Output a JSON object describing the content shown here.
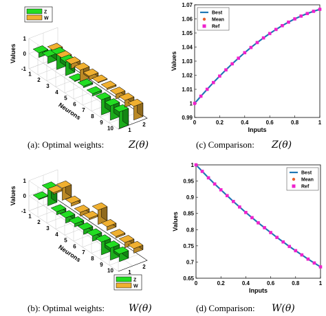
{
  "captions": {
    "a": {
      "prefix": "(a): Optimal weights:",
      "math": "Z(θ)"
    },
    "b": {
      "prefix": "(b): Optimal weights:",
      "math": "W(θ)"
    },
    "c": {
      "prefix": "(c) Comparison:",
      "math": "Z(θ)"
    },
    "d": {
      "prefix": "(d) Comparison:",
      "math": "W(θ)"
    }
  },
  "colors": {
    "z": "#22dd22",
    "w": "#f0b030",
    "best": "#1f77b4",
    "mean": "#e8602c",
    "ref": "#ee22cc"
  },
  "chart_data": [
    {
      "type": "bar3d",
      "id": "a",
      "zlabel": "Values",
      "ylabel": "Neurons",
      "x_ticks": [
        "1",
        "2"
      ],
      "y_ticks": [
        "1",
        "2",
        "3",
        "4",
        "5",
        "6",
        "7",
        "8",
        "9",
        "10"
      ],
      "z_ticks": [
        "1",
        "0",
        "-1"
      ],
      "zlim": [
        -1,
        1
      ],
      "legend": [
        "Z",
        "W"
      ],
      "legend_position": "top-left",
      "series": [
        {
          "name": "Z",
          "values": [
            0.3,
            0.45,
            1.0,
            0.9,
            0.05,
            0.1,
            -0.15,
            -1.0,
            -0.95,
            -1.1
          ]
        },
        {
          "name": "W",
          "values": [
            0.1,
            -0.1,
            -0.3,
            -0.75,
            -0.25,
            -0.05,
            -0.1,
            -0.3,
            -0.45,
            -0.9
          ]
        }
      ]
    },
    {
      "type": "bar3d",
      "id": "b",
      "zlabel": "Values",
      "ylabel": "Neurons",
      "x_ticks": [
        "1",
        "2"
      ],
      "y_ticks": [
        "1",
        "2",
        "3",
        "4",
        "5",
        "6",
        "7",
        "8",
        "9",
        "10"
      ],
      "z_ticks": [
        "1",
        "0",
        "-1"
      ],
      "zlim": [
        -1,
        1
      ],
      "legend": [
        "Z",
        "W"
      ],
      "legend_position": "bottom-right",
      "series": [
        {
          "name": "Z",
          "values": [
            0.05,
            1.1,
            -0.2,
            -0.35,
            -0.2,
            -0.3,
            -0.35,
            -0.85,
            -0.8,
            -0.5
          ]
        },
        {
          "name": "W",
          "values": [
            0.1,
            0.8,
            0.2,
            -0.25,
            -0.1,
            0.95,
            0.25,
            -0.1,
            -0.35,
            -0.3
          ]
        }
      ]
    },
    {
      "type": "line",
      "id": "c",
      "xlabel": "Inputs",
      "ylabel": "Values",
      "xlim": [
        0,
        1
      ],
      "ylim": [
        0.99,
        1.07
      ],
      "x_ticks": [
        "0",
        "0.2",
        "0.4",
        "0.6",
        "0.8",
        "1"
      ],
      "y_ticks": [
        "0.99",
        "1",
        "1.01",
        "1.02",
        "1.03",
        "1.04",
        "1.05",
        "1.06",
        "1.07"
      ],
      "legend": [
        "Best",
        "Mean",
        "Ref"
      ],
      "legend_position": "top-left",
      "x": [
        0,
        0.05,
        0.1,
        0.15,
        0.2,
        0.25,
        0.3,
        0.35,
        0.4,
        0.45,
        0.5,
        0.55,
        0.6,
        0.65,
        0.7,
        0.75,
        0.8,
        0.85,
        0.9,
        0.95,
        1.0
      ],
      "series": [
        {
          "name": "Best",
          "values": [
            1.0,
            1.0051,
            1.01,
            1.0148,
            1.0194,
            1.0238,
            1.0281,
            1.0321,
            1.036,
            1.0397,
            1.0432,
            1.0465,
            1.0496,
            1.0525,
            1.0552,
            1.0577,
            1.06,
            1.062,
            1.0638,
            1.0654,
            1.0668
          ]
        },
        {
          "name": "Mean",
          "values": [
            1.0,
            1.0051,
            1.01,
            1.0148,
            1.0194,
            1.0238,
            1.0281,
            1.0321,
            1.036,
            1.0397,
            1.0432,
            1.0465,
            1.0496,
            1.0525,
            1.0552,
            1.0577,
            1.06,
            1.062,
            1.0638,
            1.0654,
            1.0668
          ]
        },
        {
          "name": "Ref",
          "values": [
            1.0,
            1.0051,
            1.01,
            1.0148,
            1.0194,
            1.0238,
            1.0281,
            1.0321,
            1.036,
            1.0397,
            1.0432,
            1.0465,
            1.0496,
            1.0525,
            1.0552,
            1.0577,
            1.06,
            1.062,
            1.0638,
            1.0654,
            1.0668
          ]
        }
      ]
    },
    {
      "type": "line",
      "id": "d",
      "xlabel": "Inputs",
      "ylabel": "Values",
      "xlim": [
        0,
        1
      ],
      "ylim": [
        0.65,
        1.0
      ],
      "x_ticks": [
        "0",
        "0.2",
        "0.4",
        "0.6",
        "0.8",
        "1"
      ],
      "y_ticks": [
        "0.65",
        "0.7",
        "0.75",
        "0.8",
        "0.85",
        "0.9",
        "0.95",
        "1"
      ],
      "legend": [
        "Best",
        "Mean",
        "Ref"
      ],
      "legend_position": "top-right",
      "x": [
        0,
        0.05,
        0.1,
        0.15,
        0.2,
        0.25,
        0.3,
        0.35,
        0.4,
        0.45,
        0.5,
        0.55,
        0.6,
        0.65,
        0.7,
        0.75,
        0.8,
        0.85,
        0.9,
        0.95,
        1.0
      ],
      "series": [
        {
          "name": "Best",
          "values": [
            1.0,
            0.98,
            0.96,
            0.941,
            0.923,
            0.905,
            0.887,
            0.87,
            0.853,
            0.837,
            0.821,
            0.806,
            0.791,
            0.776,
            0.762,
            0.748,
            0.735,
            0.722,
            0.709,
            0.697,
            0.685
          ]
        },
        {
          "name": "Mean",
          "values": [
            1.0,
            0.98,
            0.96,
            0.941,
            0.923,
            0.905,
            0.887,
            0.87,
            0.853,
            0.837,
            0.821,
            0.806,
            0.791,
            0.776,
            0.762,
            0.748,
            0.735,
            0.722,
            0.709,
            0.697,
            0.685
          ]
        },
        {
          "name": "Ref",
          "values": [
            1.0,
            0.98,
            0.96,
            0.941,
            0.923,
            0.905,
            0.887,
            0.87,
            0.853,
            0.837,
            0.821,
            0.806,
            0.791,
            0.776,
            0.762,
            0.748,
            0.735,
            0.722,
            0.709,
            0.697,
            0.685
          ]
        }
      ]
    }
  ]
}
